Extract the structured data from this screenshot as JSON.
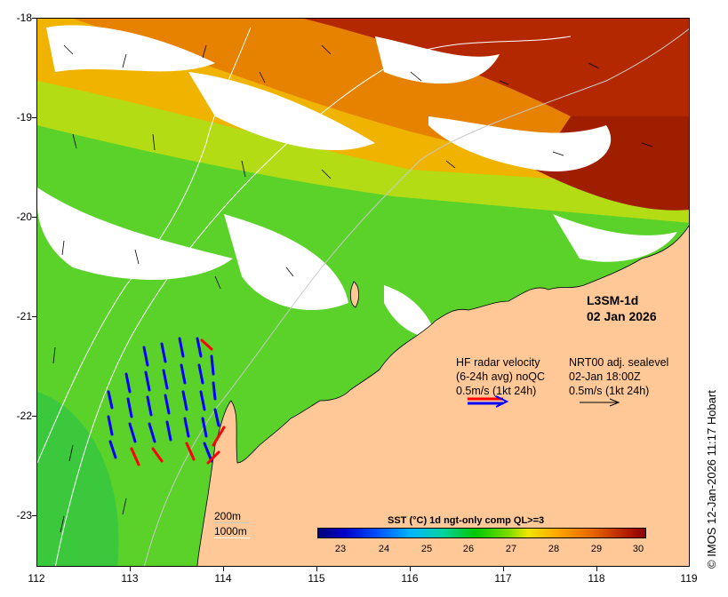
{
  "map": {
    "product_name": "L3SM-1d",
    "date": "02 Jan 2026",
    "lat_ticks": [
      "-18",
      "-19",
      "-20",
      "-21",
      "-22",
      "-23"
    ],
    "lon_ticks": [
      "112",
      "113",
      "114",
      "115",
      "116",
      "117",
      "118",
      "119"
    ],
    "extent": {
      "lon_min": 112,
      "lon_max": 119,
      "lat_min": -23.5,
      "lat_max": -18
    }
  },
  "legend": {
    "hf_radar": {
      "line1": "HF radar velocity",
      "line2": "(6-24h avg) noQC",
      "line3": "0.5m/s (1kt 24h)",
      "colors": [
        "#ff0000",
        "#0000ff"
      ]
    },
    "sealevel": {
      "line1": "NRT00 adj. sealevel",
      "line2": "02-Jan 18:00Z",
      "line3": "0.5m/s (1kt 24h)"
    }
  },
  "colorbar": {
    "title": "SST (°C) 1d ngt-only comp QL>=3",
    "ticks": [
      "23",
      "24",
      "25",
      "26",
      "27",
      "28",
      "29",
      "30"
    ]
  },
  "depth_contours": {
    "shallow": "200m",
    "deep": "1000m"
  },
  "credit": "© IMOS 12-Jan-2026 11:17 Hobart",
  "colors": {
    "land": "#ffc896",
    "no_data": "#ffffff",
    "hot": "#b41e00",
    "warm": "#e68200",
    "mid": "#f0c800",
    "cool": "#64d200",
    "coolest": "#32c800"
  }
}
